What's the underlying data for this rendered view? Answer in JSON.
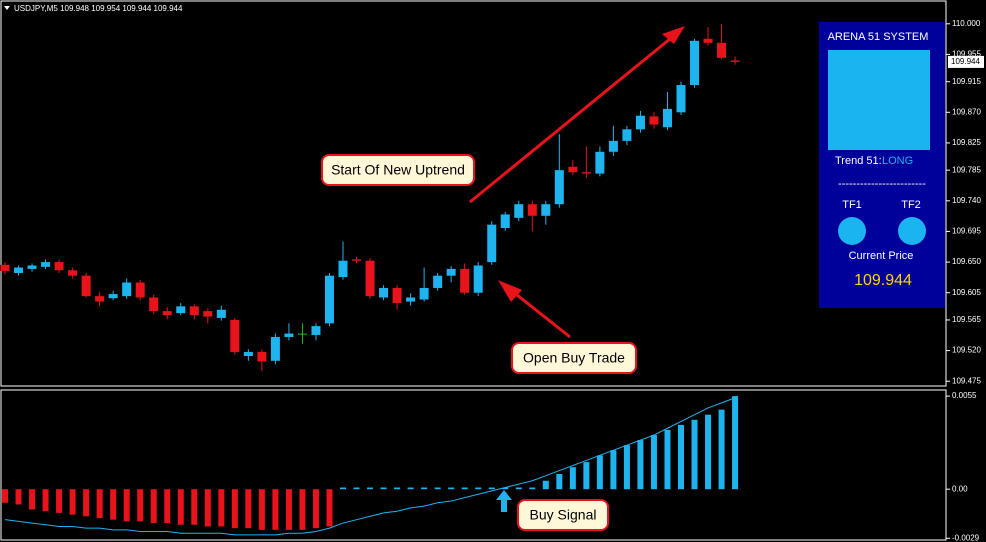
{
  "chart_data": [
    {
      "type": "candlestick",
      "title": "USDJPY,M5 109.948 109.954 109.944 109.944",
      "up_color": "#1eb4f0",
      "down_color": "#e8131b",
      "doji_color": "#22c022",
      "ylim": [
        109.468,
        110.032
      ],
      "yticks": [
        {
          "value": 110,
          "label": "110.000"
        },
        109.955,
        {
          "value": 109.915,
          "label": "109.915"
        },
        {
          "value": 109.87,
          "label": "109.870"
        },
        109.825,
        109.785,
        {
          "value": 109.74,
          "label": "109.740"
        },
        109.695,
        {
          "value": 109.65,
          "label": "109.650"
        },
        109.605,
        109.565,
        {
          "value": 109.52,
          "label": "109.520"
        },
        109.475
      ],
      "last_price": 109.944,
      "ohlc": [
        [
          109.646,
          109.65,
          109.632,
          109.637
        ],
        [
          109.634,
          109.645,
          109.63,
          109.642
        ],
        [
          109.64,
          109.648,
          109.636,
          109.645
        ],
        [
          109.643,
          109.654,
          109.64,
          109.65
        ],
        [
          109.65,
          109.654,
          109.634,
          109.638
        ],
        [
          109.638,
          109.642,
          109.626,
          109.63
        ],
        [
          109.63,
          109.634,
          109.598,
          109.6
        ],
        [
          109.6,
          109.606,
          109.585,
          109.592
        ],
        [
          109.597,
          109.608,
          109.594,
          109.603
        ],
        [
          109.6,
          109.626,
          109.596,
          109.62
        ],
        [
          109.62,
          109.624,
          109.594,
          109.598
        ],
        [
          109.598,
          109.602,
          109.574,
          109.578
        ],
        [
          109.578,
          109.584,
          109.566,
          109.572
        ],
        [
          109.575,
          109.59,
          109.572,
          109.585
        ],
        [
          109.585,
          109.588,
          109.566,
          109.572
        ],
        [
          109.578,
          109.582,
          109.56,
          109.57
        ],
        [
          109.568,
          109.586,
          109.564,
          109.58
        ],
        [
          109.565,
          109.568,
          109.514,
          109.518
        ],
        [
          109.512,
          109.522,
          109.505,
          109.518
        ],
        [
          109.518,
          109.522,
          109.49,
          109.504
        ],
        [
          109.505,
          109.545,
          109.5,
          109.54
        ],
        [
          109.54,
          109.56,
          109.535,
          109.545
        ],
        [
          109.545,
          109.56,
          109.53,
          109.545
        ],
        [
          109.543,
          109.56,
          109.535,
          109.556
        ],
        [
          109.56,
          109.634,
          109.556,
          109.63
        ],
        [
          109.628,
          109.68,
          109.624,
          109.652
        ],
        [
          109.654,
          109.658,
          109.648,
          109.652
        ],
        [
          109.652,
          109.656,
          109.596,
          109.6
        ],
        [
          109.598,
          109.616,
          109.594,
          109.612
        ],
        [
          109.612,
          109.616,
          109.58,
          109.59
        ],
        [
          109.592,
          109.604,
          109.586,
          109.598
        ],
        [
          109.595,
          109.642,
          109.592,
          109.612
        ],
        [
          109.612,
          109.634,
          109.608,
          109.63
        ],
        [
          109.63,
          109.644,
          109.62,
          109.64
        ],
        [
          109.64,
          109.648,
          109.602,
          109.605
        ],
        [
          109.605,
          109.65,
          109.6,
          109.645
        ],
        [
          109.65,
          109.71,
          109.646,
          109.705
        ],
        [
          109.7,
          109.724,
          109.696,
          109.72
        ],
        [
          109.715,
          109.74,
          109.71,
          109.735
        ],
        [
          109.735,
          109.74,
          109.695,
          109.718
        ],
        [
          109.718,
          109.74,
          109.705,
          109.735
        ],
        [
          109.735,
          109.838,
          109.73,
          109.785
        ],
        [
          109.79,
          109.8,
          109.778,
          109.782
        ],
        [
          109.782,
          109.82,
          109.774,
          109.78
        ],
        [
          109.78,
          109.82,
          109.776,
          109.812
        ],
        [
          109.812,
          109.85,
          109.806,
          109.828
        ],
        [
          109.828,
          109.85,
          109.822,
          109.845
        ],
        [
          109.845,
          109.872,
          109.84,
          109.865
        ],
        [
          109.864,
          109.87,
          109.846,
          109.852
        ],
        [
          109.848,
          109.9,
          109.844,
          109.875
        ],
        [
          109.87,
          109.915,
          109.866,
          109.91
        ],
        [
          109.91,
          109.978,
          109.906,
          109.975
        ],
        [
          109.978,
          109.995,
          109.968,
          109.972
        ],
        [
          109.972,
          110,
          109.948,
          109.95
        ],
        [
          109.946,
          109.952,
          109.94,
          109.944
        ]
      ],
      "annotations": [
        "Start Of New Uptrend",
        "Open Buy Trade"
      ]
    },
    {
      "type": "histogram-line",
      "ylim": [
        -0.003,
        0.0058
      ],
      "yticks": [
        0.0055,
        {
          "value": 0,
          "label": "0.00"
        },
        -0.0029
      ],
      "series": [
        {
          "type": "bar",
          "color": "#1eb4f0",
          "negative_color": "#e8131b",
          "values": [
            -0.0008,
            -0.0009,
            -0.0012,
            -0.0013,
            -0.0014,
            -0.0015,
            -0.0016,
            -0.0017,
            -0.0018,
            -0.0019,
            -0.0019,
            -0.002,
            -0.002,
            -0.0021,
            -0.0021,
            -0.0022,
            -0.0022,
            -0.0023,
            -0.0023,
            -0.0024,
            -0.0024,
            -0.0024,
            -0.0024,
            -0.0023,
            -0.0022,
            0.0001,
            0.0001,
            0.0001,
            0.0001,
            0.0001,
            0.0001,
            0.0001,
            0.0001,
            0.0001,
            0.0001,
            0.0001,
            0.0001,
            0.0001,
            0.0001,
            0.0001,
            0.0005,
            0.0009,
            0.0013,
            0.0016,
            0.002,
            0.0023,
            0.0026,
            0.0029,
            0.0032,
            0.0035,
            0.0038,
            0.0041,
            0.0044,
            0.0047,
            0.0055
          ]
        },
        {
          "type": "line",
          "color": "#1eb4f0",
          "values": [
            -0.0018,
            -0.0019,
            -0.002,
            -0.0021,
            -0.0022,
            -0.0022,
            -0.0023,
            -0.0023,
            -0.0024,
            -0.0024,
            -0.0025,
            -0.0025,
            -0.0025,
            -0.0026,
            -0.0026,
            -0.0026,
            -0.0026,
            -0.0027,
            -0.0027,
            -0.0027,
            -0.0027,
            -0.0026,
            -0.0026,
            -0.0025,
            -0.0023,
            -0.002,
            -0.0018,
            -0.0016,
            -0.0014,
            -0.0013,
            -0.0011,
            -0.001,
            -0.0008,
            -0.0007,
            -0.0005,
            -0.0003,
            -0.0001,
            0.0001,
            0.0003,
            0.0005,
            0.0008,
            0.0011,
            0.0014,
            0.0017,
            0.002,
            0.0023,
            0.0026,
            0.0029,
            0.0032,
            0.0036,
            0.004,
            0.0044,
            0.0048,
            0.0051,
            0.0054
          ]
        }
      ],
      "annotations": [
        "Buy Signal"
      ]
    }
  ],
  "panel": {
    "title": "ARENA 51 SYSTEM",
    "trend_label": "Trend 51:",
    "trend_value": "LONG",
    "separator": "------------------------",
    "tf1": "TF1",
    "tf2": "TF2",
    "price_label": "Current Price",
    "price": "109.944"
  }
}
